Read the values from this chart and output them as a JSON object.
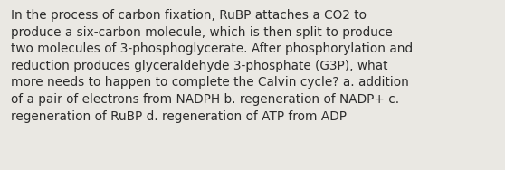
{
  "text": "In the process of carbon fixation, RuBP attaches a CO2 to\nproduce a six-carbon molecule, which is then split to produce\ntwo molecules of 3-phosphoglycerate. After phosphorylation and\nreduction produces glyceraldehyde 3-phosphate (G3P), what\nmore needs to happen to complete the Calvin cycle? a. addition\nof a pair of electrons from NADPH b. regeneration of NADP+ c.\nregeneration of RuBP d. regeneration of ATP from ADP",
  "background_color": "#eae8e3",
  "text_color": "#2b2b2b",
  "font_size": 9.8,
  "fig_width": 5.58,
  "fig_height": 1.88,
  "dpi": 100
}
